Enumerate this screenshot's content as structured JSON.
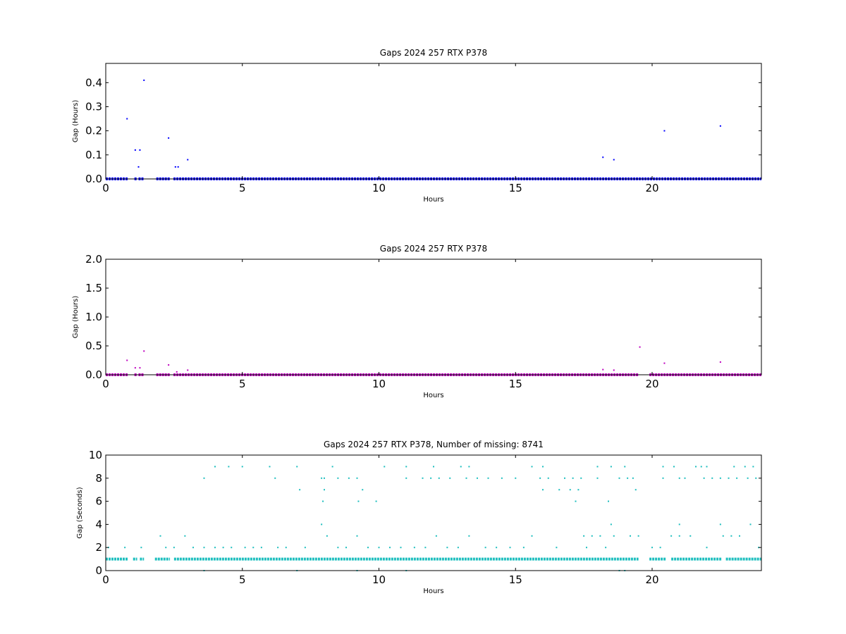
{
  "chart_data": [
    {
      "type": "scatter",
      "title": "Gaps 2024 257 RTX  P378",
      "xlabel": "Hours",
      "ylabel": "Gap (Hours)",
      "xlim": [
        0,
        24
      ],
      "ylim": [
        0,
        0.48
      ],
      "xticks": [
        0,
        5,
        10,
        15,
        20
      ],
      "xtick_labels": [
        "0",
        "5",
        "10",
        "15",
        "20"
      ],
      "yticks": [
        0,
        0.1,
        0.2,
        0.3,
        0.4
      ],
      "ytick_labels": [
        "0.0",
        "0.1",
        "0.2",
        "0.3",
        "0.4"
      ],
      "color": "#0000ff",
      "baseline": {
        "y": 0.0003,
        "segments": [
          [
            0,
            0.8
          ],
          [
            1.05,
            1.15
          ],
          [
            1.2,
            1.4
          ],
          [
            1.85,
            2.35
          ],
          [
            2.48,
            24
          ]
        ]
      },
      "points": [
        {
          "x": 0.78,
          "y": 0.25
        },
        {
          "x": 1.08,
          "y": 0.12
        },
        {
          "x": 1.2,
          "y": 0.05
        },
        {
          "x": 1.25,
          "y": 0.12
        },
        {
          "x": 1.4,
          "y": 0.41
        },
        {
          "x": 2.3,
          "y": 0.17
        },
        {
          "x": 2.55,
          "y": 0.05
        },
        {
          "x": 2.65,
          "y": 0.05
        },
        {
          "x": 3.0,
          "y": 0.08
        },
        {
          "x": 18.2,
          "y": 0.09
        },
        {
          "x": 18.6,
          "y": 0.08
        },
        {
          "x": 20.45,
          "y": 0.2
        },
        {
          "x": 22.5,
          "y": 0.22
        }
      ]
    },
    {
      "type": "scatter",
      "title": "Gaps 2024 257 RTX  P378",
      "xlabel": "Hours",
      "ylabel": "Gap (Hours)",
      "xlim": [
        0,
        24
      ],
      "ylim": [
        0,
        2.0
      ],
      "xticks": [
        0,
        5,
        10,
        15,
        20
      ],
      "xtick_labels": [
        "0",
        "5",
        "10",
        "15",
        "20"
      ],
      "yticks": [
        0,
        0.5,
        1.0,
        1.5,
        2.0
      ],
      "ytick_labels": [
        "0.0",
        "0.5",
        "1.0",
        "1.5",
        "2.0"
      ],
      "color": "#bf00bf",
      "baseline": {
        "y": 0.0003,
        "segments": [
          [
            0,
            0.8
          ],
          [
            1.05,
            1.15
          ],
          [
            1.2,
            1.4
          ],
          [
            1.85,
            2.35
          ],
          [
            2.48,
            19.5
          ],
          [
            19.9,
            24
          ]
        ]
      },
      "points": [
        {
          "x": 0.78,
          "y": 0.25
        },
        {
          "x": 1.08,
          "y": 0.12
        },
        {
          "x": 1.25,
          "y": 0.12
        },
        {
          "x": 1.4,
          "y": 0.41
        },
        {
          "x": 2.3,
          "y": 0.17
        },
        {
          "x": 2.6,
          "y": 0.05
        },
        {
          "x": 3.0,
          "y": 0.08
        },
        {
          "x": 18.2,
          "y": 0.09
        },
        {
          "x": 18.6,
          "y": 0.08
        },
        {
          "x": 19.55,
          "y": 0.48
        },
        {
          "x": 20.45,
          "y": 0.2
        },
        {
          "x": 22.5,
          "y": 0.22
        }
      ]
    },
    {
      "type": "scatter",
      "title": "Gaps 2024 257 RTX  P378, Number of missing: 8741",
      "xlabel": "Hours",
      "ylabel": "Gap (Seconds)",
      "xlim": [
        0,
        24
      ],
      "ylim": [
        0,
        10
      ],
      "xticks": [
        0,
        5,
        10,
        15,
        20
      ],
      "xtick_labels": [
        "0",
        "5",
        "10",
        "15",
        "20"
      ],
      "yticks": [
        0,
        2,
        4,
        6,
        8,
        10
      ],
      "ytick_labels": [
        "0",
        "2",
        "4",
        "6",
        "8",
        "10"
      ],
      "color": "#1fbfbf",
      "baseline": {
        "y": 1,
        "segments": [
          [
            0,
            0.8
          ],
          [
            1.0,
            1.15
          ],
          [
            1.25,
            1.4
          ],
          [
            1.8,
            2.35
          ],
          [
            2.5,
            19.5
          ],
          [
            19.9,
            20.5
          ],
          [
            20.7,
            22.55
          ],
          [
            22.7,
            24
          ]
        ]
      },
      "points": [
        {
          "x": 0.1,
          "y": 2
        },
        {
          "x": 0.7,
          "y": 2
        },
        {
          "x": 1.3,
          "y": 2
        },
        {
          "x": 2.0,
          "y": 3
        },
        {
          "x": 2.2,
          "y": 2
        },
        {
          "x": 2.5,
          "y": 2
        },
        {
          "x": 2.9,
          "y": 3
        },
        {
          "x": 3.2,
          "y": 2
        },
        {
          "x": 3.6,
          "y": 8
        },
        {
          "x": 3.6,
          "y": 2
        },
        {
          "x": 3.6,
          "y": 0
        },
        {
          "x": 4.0,
          "y": 9
        },
        {
          "x": 4.0,
          "y": 2
        },
        {
          "x": 4.3,
          "y": 2
        },
        {
          "x": 4.5,
          "y": 9
        },
        {
          "x": 4.6,
          "y": 2
        },
        {
          "x": 5.0,
          "y": 9
        },
        {
          "x": 5.1,
          "y": 2
        },
        {
          "x": 5.4,
          "y": 2
        },
        {
          "x": 5.7,
          "y": 2
        },
        {
          "x": 6.0,
          "y": 9
        },
        {
          "x": 6.2,
          "y": 8
        },
        {
          "x": 6.3,
          "y": 2
        },
        {
          "x": 6.6,
          "y": 2
        },
        {
          "x": 7.0,
          "y": 9
        },
        {
          "x": 7.1,
          "y": 7
        },
        {
          "x": 7.0,
          "y": 0
        },
        {
          "x": 7.3,
          "y": 2
        },
        {
          "x": 7.9,
          "y": 8
        },
        {
          "x": 8.0,
          "y": 8
        },
        {
          "x": 7.95,
          "y": 6
        },
        {
          "x": 8.0,
          "y": 7
        },
        {
          "x": 7.9,
          "y": 4
        },
        {
          "x": 8.1,
          "y": 3
        },
        {
          "x": 8.3,
          "y": 9
        },
        {
          "x": 8.5,
          "y": 8
        },
        {
          "x": 8.5,
          "y": 2
        },
        {
          "x": 8.8,
          "y": 2
        },
        {
          "x": 8.9,
          "y": 8
        },
        {
          "x": 9.2,
          "y": 8
        },
        {
          "x": 9.2,
          "y": 3
        },
        {
          "x": 9.25,
          "y": 6
        },
        {
          "x": 9.4,
          "y": 7
        },
        {
          "x": 9.2,
          "y": 0
        },
        {
          "x": 9.6,
          "y": 2
        },
        {
          "x": 9.9,
          "y": 6
        },
        {
          "x": 10.0,
          "y": 2
        },
        {
          "x": 10.2,
          "y": 9
        },
        {
          "x": 10.4,
          "y": 2
        },
        {
          "x": 10.8,
          "y": 2
        },
        {
          "x": 11.0,
          "y": 9
        },
        {
          "x": 11.0,
          "y": 8
        },
        {
          "x": 11.0,
          "y": 0
        },
        {
          "x": 11.3,
          "y": 2
        },
        {
          "x": 11.6,
          "y": 8
        },
        {
          "x": 11.7,
          "y": 2
        },
        {
          "x": 11.9,
          "y": 8
        },
        {
          "x": 12.0,
          "y": 9
        },
        {
          "x": 12.1,
          "y": 3
        },
        {
          "x": 12.2,
          "y": 8
        },
        {
          "x": 12.5,
          "y": 2
        },
        {
          "x": 12.6,
          "y": 8
        },
        {
          "x": 12.9,
          "y": 2
        },
        {
          "x": 13.0,
          "y": 9
        },
        {
          "x": 13.2,
          "y": 8
        },
        {
          "x": 13.3,
          "y": 9
        },
        {
          "x": 13.3,
          "y": 3
        },
        {
          "x": 13.6,
          "y": 8
        },
        {
          "x": 13.9,
          "y": 2
        },
        {
          "x": 14.0,
          "y": 8
        },
        {
          "x": 14.3,
          "y": 2
        },
        {
          "x": 14.5,
          "y": 8
        },
        {
          "x": 14.8,
          "y": 2
        },
        {
          "x": 15.0,
          "y": 8
        },
        {
          "x": 15.3,
          "y": 2
        },
        {
          "x": 15.6,
          "y": 9
        },
        {
          "x": 15.6,
          "y": 3
        },
        {
          "x": 15.9,
          "y": 8
        },
        {
          "x": 16.0,
          "y": 7
        },
        {
          "x": 16.0,
          "y": 9
        },
        {
          "x": 16.2,
          "y": 8
        },
        {
          "x": 16.5,
          "y": 2
        },
        {
          "x": 16.6,
          "y": 7
        },
        {
          "x": 16.8,
          "y": 8
        },
        {
          "x": 17.0,
          "y": 7
        },
        {
          "x": 17.1,
          "y": 8
        },
        {
          "x": 17.2,
          "y": 6
        },
        {
          "x": 17.3,
          "y": 7
        },
        {
          "x": 17.4,
          "y": 8
        },
        {
          "x": 17.5,
          "y": 3
        },
        {
          "x": 17.6,
          "y": 2
        },
        {
          "x": 17.8,
          "y": 3
        },
        {
          "x": 18.0,
          "y": 9
        },
        {
          "x": 18.0,
          "y": 8
        },
        {
          "x": 18.1,
          "y": 3
        },
        {
          "x": 18.3,
          "y": 2
        },
        {
          "x": 18.4,
          "y": 6
        },
        {
          "x": 18.5,
          "y": 9
        },
        {
          "x": 18.5,
          "y": 4
        },
        {
          "x": 18.6,
          "y": 3
        },
        {
          "x": 18.8,
          "y": 8
        },
        {
          "x": 18.8,
          "y": 0
        },
        {
          "x": 19.0,
          "y": 9
        },
        {
          "x": 19.0,
          "y": 0
        },
        {
          "x": 19.1,
          "y": 8
        },
        {
          "x": 19.2,
          "y": 3
        },
        {
          "x": 19.3,
          "y": 8
        },
        {
          "x": 19.4,
          "y": 7
        },
        {
          "x": 19.5,
          "y": 3
        },
        {
          "x": 20.0,
          "y": 2
        },
        {
          "x": 20.3,
          "y": 2
        },
        {
          "x": 20.4,
          "y": 9
        },
        {
          "x": 20.4,
          "y": 8
        },
        {
          "x": 20.7,
          "y": 3
        },
        {
          "x": 20.8,
          "y": 9
        },
        {
          "x": 21.0,
          "y": 8
        },
        {
          "x": 21.0,
          "y": 4
        },
        {
          "x": 21.0,
          "y": 3
        },
        {
          "x": 21.2,
          "y": 8
        },
        {
          "x": 21.4,
          "y": 3
        },
        {
          "x": 21.6,
          "y": 9
        },
        {
          "x": 21.8,
          "y": 9
        },
        {
          "x": 21.9,
          "y": 8
        },
        {
          "x": 22.0,
          "y": 9
        },
        {
          "x": 22.0,
          "y": 2
        },
        {
          "x": 22.2,
          "y": 8
        },
        {
          "x": 22.5,
          "y": 4
        },
        {
          "x": 22.5,
          "y": 8
        },
        {
          "x": 22.6,
          "y": 3
        },
        {
          "x": 22.8,
          "y": 8
        },
        {
          "x": 22.9,
          "y": 3
        },
        {
          "x": 23.0,
          "y": 9
        },
        {
          "x": 23.1,
          "y": 8
        },
        {
          "x": 23.2,
          "y": 3
        },
        {
          "x": 23.4,
          "y": 9
        },
        {
          "x": 23.5,
          "y": 8
        },
        {
          "x": 23.6,
          "y": 4
        },
        {
          "x": 23.7,
          "y": 9
        },
        {
          "x": 23.8,
          "y": 8
        },
        {
          "x": 23.9,
          "y": 2
        }
      ]
    }
  ]
}
